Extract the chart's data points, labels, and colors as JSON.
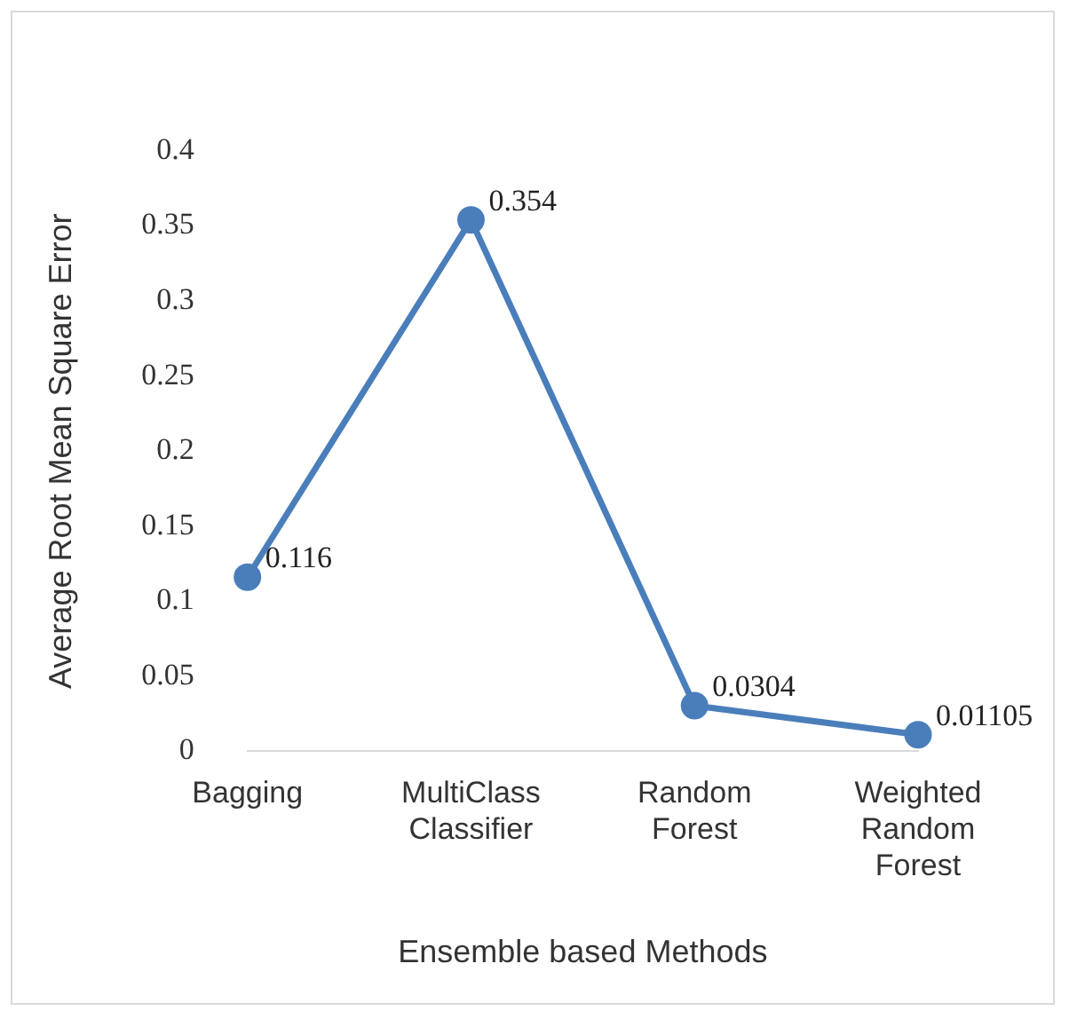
{
  "chart_data": {
    "type": "line",
    "xlabel": "Ensemble based Methods",
    "ylabel": "Average Root Mean Square Error",
    "categories": [
      "Bagging",
      "MultiClass Classifier",
      "Random Forest",
      "Weighted Random Forest"
    ],
    "series": [
      {
        "color": "#4a7ebb",
        "values": [
          0.116,
          0.354,
          0.0304,
          0.01105
        ]
      }
    ],
    "ylim": [
      0,
      0.4
    ],
    "yticks": [
      0,
      0.05,
      0.1,
      0.15,
      0.2,
      0.25,
      0.3,
      0.35,
      0.4
    ],
    "grid": false,
    "legend": false,
    "marker": "circle",
    "line_style": "solid",
    "data_labels": true
  }
}
